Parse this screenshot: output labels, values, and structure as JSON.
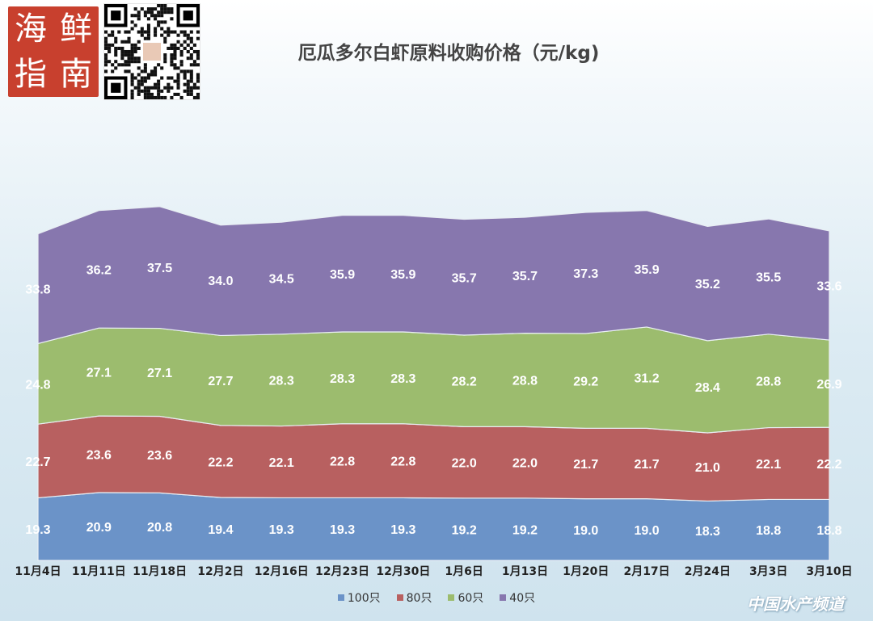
{
  "logo": {
    "chars": [
      "海",
      "鲜",
      "指",
      "南"
    ]
  },
  "watermark": "中国水产频道",
  "chart_data": {
    "type": "area",
    "stacked": true,
    "title": "厄瓜多尔白虾原料收购价格（元/kg)",
    "categories": [
      "11月4日",
      "11月11日",
      "11月18日",
      "12月2日",
      "12月16日",
      "12月23日",
      "12月30日",
      "1月6日",
      "1月13日",
      "1月20日",
      "2月17日",
      "2月24日",
      "3月3日",
      "3月10日"
    ],
    "series": [
      {
        "name": "100只",
        "color": "#6b93c8",
        "values": [
          19.3,
          20.9,
          20.8,
          19.4,
          19.3,
          19.3,
          19.3,
          19.2,
          19.2,
          19.0,
          19.0,
          18.3,
          18.8,
          18.8
        ]
      },
      {
        "name": "80只",
        "color": "#b86060",
        "values": [
          22.7,
          23.6,
          23.6,
          22.2,
          22.1,
          22.8,
          22.8,
          22.0,
          22.0,
          21.7,
          21.7,
          21.0,
          22.1,
          22.2
        ]
      },
      {
        "name": "60只",
        "color": "#9cbc6e",
        "values": [
          24.8,
          27.1,
          27.1,
          27.7,
          28.3,
          28.3,
          28.3,
          28.2,
          28.8,
          29.2,
          31.2,
          28.4,
          28.8,
          26.9
        ]
      },
      {
        "name": "40只",
        "color": "#8777ae",
        "values": [
          33.8,
          36.2,
          37.5,
          34.0,
          34.5,
          35.9,
          35.9,
          35.7,
          35.7,
          37.3,
          35.9,
          35.2,
          35.5,
          33.6
        ]
      }
    ],
    "ylim": [
      0,
      140
    ],
    "legend": "bottom",
    "grid": false
  }
}
